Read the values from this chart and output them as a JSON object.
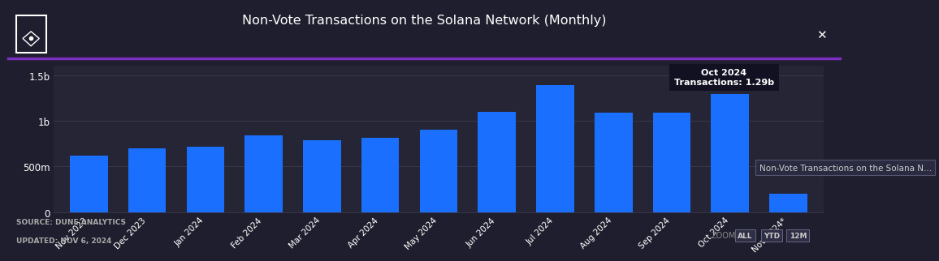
{
  "title": "Non-Vote Transactions on the Solana Network (Monthly)",
  "background_color": "#1e1e2e",
  "plot_bg_color": "#252535",
  "bar_color": "#1a6fff",
  "categories": [
    "Nov 2023",
    "Dec 2023",
    "Jan 2024",
    "Feb 2024",
    "Mar 2024",
    "Apr 2024",
    "May 2024",
    "Jun 2024",
    "Jul 2024",
    "Aug 2024",
    "Sep 2024",
    "Oct 2024",
    "Nov 2024*"
  ],
  "values": [
    620000000,
    700000000,
    720000000,
    840000000,
    790000000,
    810000000,
    900000000,
    1100000000,
    1390000000,
    1090000000,
    1090000000,
    1290000000,
    205000000
  ],
  "ylim": [
    0,
    1600000000
  ],
  "yticks": [
    0,
    500000000,
    1000000000,
    1500000000
  ],
  "ytick_labels": [
    "0",
    "500m",
    "1b",
    "1.5b"
  ],
  "tooltip_text_line1": "Oct 2024",
  "tooltip_text_line2": "Transactions: 1.29b",
  "tooltip_bar_index": 11,
  "legend_text": "Non-Vote Transactions on the Solana N…",
  "source_text": "SOURCE: DUNE ANALYTICS",
  "updated_text": "UPDATED: NOV 6, 2024",
  "accent_line_color": "#7b2fbe",
  "grid_color": "#3a3a50",
  "text_color": "#ffffff",
  "source_color": "#aaaaaa",
  "title_color": "#ffffff",
  "fig_bg": "#1e1e2e",
  "zoom_label_color": "#888888",
  "btn_colors": [
    "#333350",
    "#333350",
    "#333350"
  ]
}
